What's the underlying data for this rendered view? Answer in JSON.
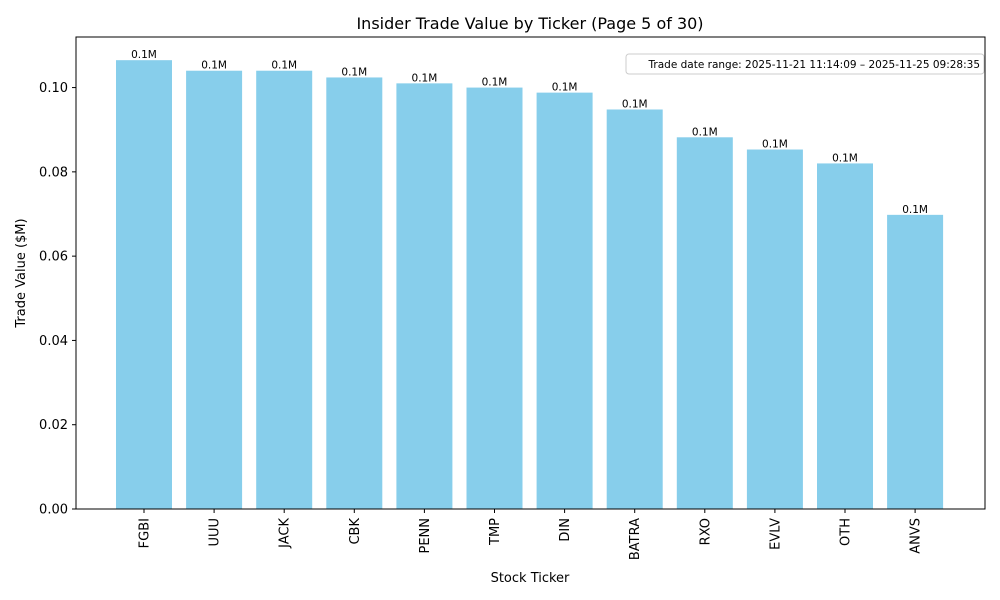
{
  "chart_data": {
    "type": "bar",
    "title": "Insider Trade Value by Ticker (Page 5 of 30)",
    "xlabel": "Stock Ticker",
    "ylabel": "Trade Value ($M)",
    "categories": [
      "FGBI",
      "UUU",
      "JACK",
      "CBK",
      "PENN",
      "TMP",
      "DIN",
      "BATRA",
      "RXO",
      "EVLV",
      "OTH",
      "ANVS"
    ],
    "values": [
      0.1065,
      0.104,
      0.104,
      0.1024,
      0.101,
      0.1,
      0.0988,
      0.0948,
      0.0882,
      0.0853,
      0.082,
      0.0698
    ],
    "data_labels": [
      "0.1M",
      "0.1M",
      "0.1M",
      "0.1M",
      "0.1M",
      "0.1M",
      "0.1M",
      "0.1M",
      "0.1M",
      "0.1M",
      "0.1M",
      "0.1M"
    ],
    "ylim": [
      0,
      0.112
    ],
    "yticks": [
      0.0,
      0.02,
      0.04,
      0.06,
      0.08,
      0.1
    ],
    "ytick_labels": [
      "0.00",
      "0.02",
      "0.04",
      "0.06",
      "0.08",
      "0.10"
    ],
    "annotation": "Trade date range: 2025-11-21 11:14:09 – 2025-11-25 09:28:35",
    "legend": "none",
    "grid": false,
    "bar_color": "#87ceeb"
  }
}
